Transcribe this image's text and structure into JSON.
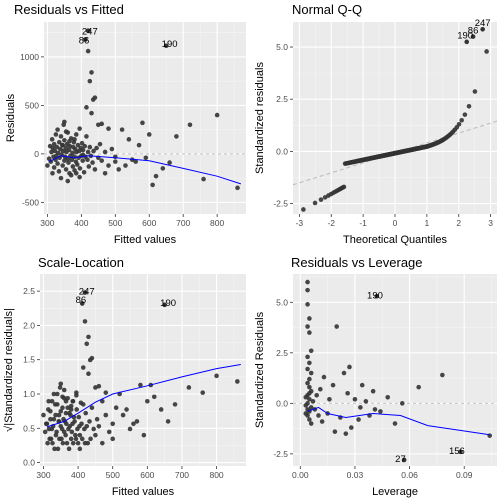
{
  "chart_data": [
    {
      "type": "scatter",
      "title": "Residuals vs Fitted",
      "xlabel": "Fitted values",
      "ylabel": "Residuals",
      "xlim": [
        290,
        885
      ],
      "ylim": [
        -620,
        1360
      ],
      "xticks": [
        300,
        400,
        500,
        600,
        700,
        800
      ],
      "yticks": [
        -500,
        0,
        500,
        1000
      ],
      "ref_line": 0,
      "points": [
        [
          300,
          -120
        ],
        [
          305,
          -50
        ],
        [
          308,
          80
        ],
        [
          310,
          -80
        ],
        [
          312,
          20
        ],
        [
          314,
          150
        ],
        [
          315,
          -200
        ],
        [
          316,
          60
        ],
        [
          318,
          -30
        ],
        [
          320,
          100
        ],
        [
          320,
          -140
        ],
        [
          322,
          30
        ],
        [
          324,
          -60
        ],
        [
          325,
          200
        ],
        [
          326,
          -20
        ],
        [
          328,
          70
        ],
        [
          330,
          -100
        ],
        [
          330,
          250
        ],
        [
          332,
          10
        ],
        [
          334,
          -180
        ],
        [
          335,
          120
        ],
        [
          336,
          -40
        ],
        [
          338,
          50
        ],
        [
          340,
          -250
        ],
        [
          340,
          180
        ],
        [
          342,
          -10
        ],
        [
          344,
          90
        ],
        [
          345,
          -120
        ],
        [
          346,
          30
        ],
        [
          348,
          300
        ],
        [
          350,
          -70
        ],
        [
          350,
          140
        ],
        [
          352,
          -30
        ],
        [
          354,
          60
        ],
        [
          355,
          -160
        ],
        [
          356,
          20
        ],
        [
          358,
          100
        ],
        [
          360,
          -50
        ],
        [
          360,
          220
        ],
        [
          362,
          -90
        ],
        [
          364,
          40
        ],
        [
          365,
          -200
        ],
        [
          366,
          80
        ],
        [
          368,
          -20
        ],
        [
          370,
          160
        ],
        [
          372,
          -60
        ],
        [
          374,
          10
        ],
        [
          375,
          -130
        ],
        [
          376,
          70
        ],
        [
          378,
          120
        ],
        [
          380,
          -30
        ],
        [
          380,
          -170
        ],
        [
          382,
          50
        ],
        [
          384,
          -80
        ],
        [
          385,
          200
        ],
        [
          386,
          20
        ],
        [
          388,
          -110
        ],
        [
          390,
          90
        ],
        [
          392,
          -40
        ],
        [
          394,
          30
        ],
        [
          395,
          260
        ],
        [
          396,
          -150
        ],
        [
          398,
          60
        ],
        [
          400,
          -20
        ],
        [
          402,
          110
        ],
        [
          404,
          -70
        ],
        [
          405,
          40
        ],
        [
          408,
          -190
        ],
        [
          410,
          80
        ],
        [
          412,
          -30
        ],
        [
          415,
          180
        ],
        [
          418,
          -60
        ],
        [
          420,
          20
        ],
        [
          422,
          -130
        ],
        [
          425,
          70
        ],
        [
          428,
          -20
        ],
        [
          430,
          420
        ],
        [
          433,
          -90
        ],
        [
          436,
          30
        ],
        [
          440,
          -160
        ],
        [
          445,
          60
        ],
        [
          450,
          -40
        ],
        [
          455,
          100
        ],
        [
          460,
          -70
        ],
        [
          470,
          20
        ],
        [
          480,
          -120
        ],
        [
          490,
          50
        ],
        [
          500,
          -30
        ],
        [
          350,
          330
        ],
        [
          360,
          -280
        ],
        [
          365,
          130
        ],
        [
          370,
          -220
        ],
        [
          345,
          90
        ],
        [
          355,
          230
        ],
        [
          395,
          -240
        ],
        [
          405,
          -10
        ],
        [
          380,
          150
        ],
        [
          385,
          -200
        ],
        [
          415,
          480
        ],
        [
          420,
          1060
        ],
        [
          425,
          750
        ],
        [
          430,
          840
        ],
        [
          440,
          580
        ],
        [
          435,
          560
        ],
        [
          450,
          300
        ],
        [
          520,
          250
        ],
        [
          540,
          150
        ],
        [
          560,
          -80
        ],
        [
          580,
          320
        ],
        [
          600,
          200
        ],
        [
          620,
          -230
        ],
        [
          640,
          -150
        ],
        [
          660,
          -90
        ],
        [
          680,
          180
        ],
        [
          720,
          300
        ],
        [
          760,
          -260
        ],
        [
          800,
          400
        ],
        [
          860,
          -350
        ],
        [
          460,
          310
        ],
        [
          470,
          -200
        ],
        [
          480,
          260
        ],
        [
          500,
          -80
        ],
        [
          510,
          -160
        ],
        [
          530,
          -120
        ],
        [
          550,
          -60
        ],
        [
          570,
          90
        ],
        [
          590,
          -40
        ],
        [
          610,
          -320
        ]
      ],
      "smooth_line": [
        [
          305,
          -80
        ],
        [
          340,
          -20
        ],
        [
          380,
          -40
        ],
        [
          420,
          -20
        ],
        [
          500,
          -40
        ],
        [
          600,
          -70
        ],
        [
          700,
          -150
        ],
        [
          800,
          -230
        ],
        [
          870,
          -310
        ]
      ],
      "annotations": [
        {
          "label": "247",
          "x": 425,
          "y": 1230
        },
        {
          "label": "86",
          "x": 408,
          "y": 1140
        },
        {
          "label": "190",
          "x": 660,
          "y": 1100
        }
      ],
      "annotated_points": [
        [
          420,
          1270
        ],
        [
          412,
          1180
        ],
        [
          650,
          1115
        ]
      ]
    },
    {
      "type": "scatter",
      "title": "Normal Q-Q",
      "xlabel": "Theoretical Quantiles",
      "ylabel": "Standardized residuals",
      "xlim": [
        -3.2,
        3.2
      ],
      "ylim": [
        -3.0,
        6.2
      ],
      "xticks": [
        -3,
        -2,
        -1,
        0,
        1,
        2,
        3
      ],
      "yticks": [
        -2.5,
        0.0,
        2.5,
        5.0
      ],
      "ref_line_endpoints": [
        [
          -3.2,
          -1.6
        ],
        [
          3.2,
          1.45
        ]
      ],
      "annotations": [
        {
          "label": "190",
          "x": 2.2,
          "y": 5.4
        },
        {
          "label": "86",
          "x": 2.45,
          "y": 5.65
        },
        {
          "label": "247",
          "x": 2.75,
          "y": 6.0
        }
      ],
      "annotated_points": [
        [
          2.25,
          5.25
        ],
        [
          2.45,
          5.5
        ],
        [
          2.75,
          5.85
        ]
      ]
    },
    {
      "type": "scatter",
      "title": "Scale-Location",
      "xlabel": "Fitted values",
      "ylabel": "√|Standardized residuals|",
      "xlim": [
        290,
        885
      ],
      "ylim": [
        -0.05,
        2.75
      ],
      "xticks": [
        300,
        400,
        500,
        600,
        700,
        800
      ],
      "yticks": [
        0.0,
        0.5,
        1.0,
        1.5,
        2.0,
        2.5
      ],
      "smooth_line": [
        [
          310,
          0.52
        ],
        [
          360,
          0.6
        ],
        [
          400,
          0.72
        ],
        [
          450,
          0.88
        ],
        [
          500,
          1.0
        ],
        [
          600,
          1.12
        ],
        [
          700,
          1.25
        ],
        [
          800,
          1.37
        ],
        [
          870,
          1.43
        ]
      ],
      "annotations": [
        {
          "label": "247",
          "x": 425,
          "y": 2.45
        },
        {
          "label": "86",
          "x": 408,
          "y": 2.33
        },
        {
          "label": "190",
          "x": 660,
          "y": 2.28
        }
      ],
      "annotated_points": [
        [
          420,
          2.48
        ],
        [
          412,
          2.32
        ],
        [
          650,
          2.3
        ]
      ]
    },
    {
      "type": "scatter",
      "title": "Residuals vs Leverage",
      "xlabel": "Leverage",
      "ylabel": "Standardized Residuals",
      "xlim": [
        -0.004,
        0.108
      ],
      "ylim": [
        -3.1,
        6.4
      ],
      "xticks": [
        0.0,
        0.03,
        0.06,
        0.09
      ],
      "xtick_labels": [
        "0.00",
        "0.03",
        "0.06",
        "0.09"
      ],
      "yticks": [
        -2.5,
        0.0,
        2.5,
        5.0
      ],
      "ref_line": 0,
      "points": [
        [
          0.004,
          6.0
        ],
        [
          0.004,
          5.6
        ],
        [
          0.004,
          4.9
        ],
        [
          0.005,
          4.2
        ],
        [
          0.004,
          3.8
        ],
        [
          0.005,
          3.5
        ],
        [
          0.006,
          2.6
        ],
        [
          0.004,
          2.3
        ],
        [
          0.005,
          2.0
        ],
        [
          0.004,
          1.7
        ],
        [
          0.006,
          1.5
        ],
        [
          0.005,
          1.2
        ],
        [
          0.004,
          1.0
        ],
        [
          0.005,
          0.8
        ],
        [
          0.006,
          0.6
        ],
        [
          0.004,
          0.4
        ],
        [
          0.005,
          0.2
        ],
        [
          0.004,
          0.0
        ],
        [
          0.006,
          -0.2
        ],
        [
          0.005,
          -0.4
        ],
        [
          0.004,
          -0.6
        ],
        [
          0.005,
          -0.8
        ],
        [
          0.006,
          -1.0
        ],
        [
          0.004,
          -0.3
        ],
        [
          0.005,
          0.5
        ],
        [
          0.003,
          -0.1
        ],
        [
          0.003,
          0.3
        ],
        [
          0.003,
          -0.5
        ],
        [
          0.007,
          0.1
        ],
        [
          0.008,
          -0.3
        ],
        [
          0.009,
          0.4
        ],
        [
          0.01,
          -0.6
        ],
        [
          0.011,
          0.7
        ],
        [
          0.012,
          -0.9
        ],
        [
          0.013,
          1.3
        ],
        [
          0.015,
          -0.5
        ],
        [
          0.018,
          0.9
        ],
        [
          0.02,
          3.8
        ],
        [
          0.022,
          -0.7
        ],
        [
          0.024,
          1.5
        ],
        [
          0.026,
          0.5
        ],
        [
          0.028,
          -1.2
        ],
        [
          0.03,
          0.2
        ],
        [
          0.032,
          -0.8
        ],
        [
          0.034,
          0.9
        ],
        [
          0.036,
          0.1
        ],
        [
          0.038,
          -0.6
        ],
        [
          0.04,
          0.6
        ],
        [
          0.044,
          -0.4
        ],
        [
          0.048,
          0.3
        ],
        [
          0.052,
          -1.0
        ],
        [
          0.065,
          0.8
        ],
        [
          0.078,
          1.4
        ],
        [
          0.104,
          -1.6
        ],
        [
          0.016,
          0.2
        ],
        [
          0.019,
          -1.4
        ],
        [
          0.027,
          1.8
        ],
        [
          0.025,
          -1.5
        ],
        [
          0.033,
          -0.2
        ],
        [
          0.056,
          0.0
        ],
        [
          0.041,
          -0.3
        ]
      ],
      "smooth_line": [
        [
          0.004,
          -0.4
        ],
        [
          0.01,
          -0.2
        ],
        [
          0.015,
          -0.5
        ],
        [
          0.025,
          -0.7
        ],
        [
          0.04,
          -0.5
        ],
        [
          0.055,
          -0.6
        ],
        [
          0.07,
          -1.1
        ],
        [
          0.085,
          -1.3
        ],
        [
          0.104,
          -1.55
        ]
      ],
      "annotations": [
        {
          "label": "190",
          "x": 0.041,
          "y": 5.2
        },
        {
          "label": "27",
          "x": 0.055,
          "y": -2.9
        },
        {
          "label": "156",
          "x": 0.086,
          "y": -2.5
        }
      ],
      "annotated_points": [
        [
          0.042,
          5.3
        ],
        [
          0.057,
          -2.8
        ],
        [
          0.088,
          -2.4
        ]
      ]
    }
  ]
}
